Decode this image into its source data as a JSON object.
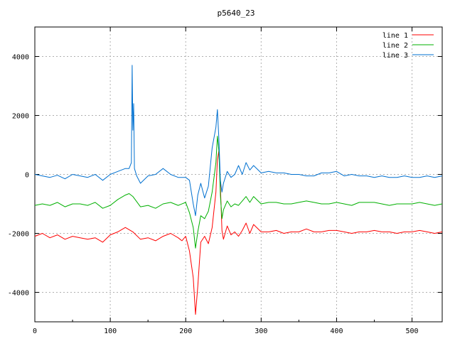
{
  "chart_data": {
    "type": "line",
    "title": "p5640_23",
    "xlabel": "",
    "ylabel": "",
    "xlim": [
      0,
      540
    ],
    "ylim": [
      -5000,
      5000
    ],
    "xticks": [
      0,
      100,
      200,
      300,
      400,
      500
    ],
    "yticks": [
      -4000,
      -2000,
      0,
      2000,
      4000
    ],
    "grid": true,
    "legend_position": "top-right",
    "series": [
      {
        "name": "line 1",
        "color": "#ff0000",
        "x": [
          0,
          10,
          20,
          30,
          40,
          50,
          60,
          70,
          80,
          90,
          100,
          110,
          120,
          130,
          140,
          150,
          160,
          170,
          180,
          190,
          195,
          200,
          205,
          210,
          213,
          216,
          220,
          225,
          230,
          235,
          240,
          242,
          244,
          246,
          248,
          250,
          255,
          260,
          265,
          270,
          275,
          280,
          285,
          290,
          300,
          310,
          320,
          330,
          340,
          350,
          360,
          370,
          380,
          390,
          400,
          410,
          420,
          430,
          440,
          450,
          460,
          470,
          480,
          490,
          500,
          510,
          520,
          530,
          540
        ],
        "y": [
          -2100,
          -2000,
          -2150,
          -2050,
          -2200,
          -2100,
          -2150,
          -2200,
          -2150,
          -2300,
          -2050,
          -1950,
          -1800,
          -1950,
          -2200,
          -2150,
          -2250,
          -2100,
          -2000,
          -2150,
          -2250,
          -2100,
          -2600,
          -3500,
          -4750,
          -3800,
          -2300,
          -2100,
          -2350,
          -1800,
          -600,
          500,
          800,
          -400,
          -1900,
          -2200,
          -1750,
          -2050,
          -1950,
          -2100,
          -1900,
          -1650,
          -2000,
          -1700,
          -1950,
          -1950,
          -1900,
          -2000,
          -1950,
          -1950,
          -1850,
          -1950,
          -1950,
          -1900,
          -1900,
          -1950,
          -2000,
          -1950,
          -1950,
          -1900,
          -1950,
          -1950,
          -2000,
          -1950,
          -1950,
          -1900,
          -1950,
          -2000,
          -1950
        ]
      },
      {
        "name": "line 2",
        "color": "#00b000",
        "x": [
          0,
          10,
          20,
          30,
          40,
          50,
          60,
          70,
          80,
          90,
          100,
          110,
          120,
          125,
          130,
          140,
          150,
          160,
          170,
          180,
          190,
          200,
          205,
          210,
          213,
          216,
          220,
          225,
          230,
          235,
          240,
          242,
          244,
          246,
          248,
          250,
          255,
          260,
          265,
          270,
          275,
          280,
          285,
          290,
          300,
          310,
          320,
          330,
          340,
          350,
          360,
          370,
          380,
          390,
          400,
          410,
          420,
          430,
          440,
          450,
          460,
          470,
          480,
          490,
          500,
          510,
          520,
          530,
          540
        ],
        "y": [
          -1050,
          -1000,
          -1050,
          -950,
          -1100,
          -1000,
          -1000,
          -1050,
          -950,
          -1150,
          -1050,
          -850,
          -700,
          -650,
          -750,
          -1100,
          -1050,
          -1150,
          -1000,
          -950,
          -1050,
          -950,
          -1300,
          -1800,
          -2500,
          -1950,
          -1400,
          -1500,
          -1250,
          -600,
          400,
          1300,
          800,
          -700,
          -1500,
          -1200,
          -900,
          -1100,
          -1000,
          -1050,
          -900,
          -750,
          -950,
          -750,
          -1000,
          -950,
          -950,
          -1000,
          -1000,
          -950,
          -900,
          -950,
          -1000,
          -1000,
          -950,
          -1000,
          -1050,
          -950,
          -950,
          -950,
          -1000,
          -1050,
          -1000,
          -1000,
          -1000,
          -950,
          -1000,
          -1050,
          -1000
        ]
      },
      {
        "name": "line 3",
        "color": "#0070d0",
        "x": [
          0,
          10,
          20,
          30,
          40,
          50,
          60,
          70,
          80,
          90,
          100,
          110,
          120,
          125,
          128,
          129,
          130,
          131,
          132,
          135,
          140,
          150,
          160,
          170,
          180,
          190,
          200,
          205,
          210,
          213,
          216,
          220,
          225,
          230,
          235,
          240,
          242,
          244,
          246,
          248,
          250,
          255,
          260,
          265,
          270,
          275,
          280,
          285,
          290,
          300,
          310,
          320,
          330,
          340,
          350,
          360,
          370,
          380,
          390,
          400,
          410,
          420,
          430,
          440,
          450,
          460,
          470,
          480,
          490,
          500,
          510,
          520,
          530,
          540
        ],
        "y": [
          0,
          -50,
          -100,
          -30,
          -150,
          0,
          -50,
          -100,
          0,
          -200,
          0,
          100,
          200,
          200,
          400,
          3700,
          1500,
          2400,
          200,
          -50,
          -300,
          -50,
          0,
          200,
          0,
          -100,
          -100,
          -200,
          -1000,
          -1400,
          -700,
          -300,
          -800,
          -400,
          900,
          1600,
          2200,
          1200,
          -200,
          -600,
          -300,
          100,
          -100,
          0,
          300,
          0,
          400,
          150,
          300,
          50,
          100,
          50,
          50,
          0,
          0,
          -50,
          -50,
          50,
          50,
          100,
          -50,
          0,
          -50,
          -50,
          -100,
          -50,
          -100,
          -100,
          -50,
          -100,
          -100,
          -50,
          -100,
          -50
        ]
      }
    ]
  }
}
